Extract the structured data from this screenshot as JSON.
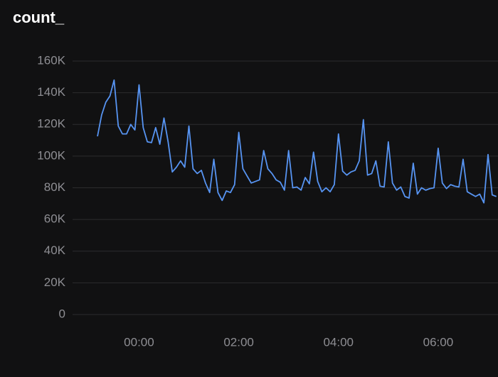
{
  "chart_data": {
    "type": "line",
    "title": "count_",
    "x": [
      -50,
      -45,
      -40,
      -35,
      -30,
      -25,
      -20,
      -15,
      -10,
      -5,
      0,
      5,
      10,
      15,
      20,
      25,
      30,
      35,
      40,
      45,
      50,
      55,
      60,
      65,
      70,
      75,
      80,
      85,
      90,
      95,
      100,
      105,
      110,
      115,
      120,
      125,
      130,
      135,
      140,
      145,
      150,
      155,
      160,
      165,
      170,
      175,
      180,
      185,
      190,
      195,
      200,
      205,
      210,
      215,
      220,
      225,
      230,
      235,
      240,
      245,
      250,
      255,
      260,
      265,
      270,
      275,
      280,
      285,
      290,
      295,
      300,
      305,
      310,
      315,
      320,
      325,
      330,
      335,
      340,
      345,
      350,
      355,
      360,
      365,
      370,
      375,
      380,
      385,
      390,
      395,
      400,
      405,
      410,
      415,
      420,
      425,
      430
    ],
    "series": [
      {
        "name": "count_",
        "color": "#5794f2",
        "values": [
          112500,
          126000,
          134000,
          138000,
          148000,
          119000,
          114000,
          114000,
          120000,
          116500,
          145000,
          118000,
          109000,
          108500,
          118000,
          107500,
          124000,
          109000,
          90000,
          93000,
          97000,
          93000,
          119000,
          92000,
          89000,
          91000,
          83000,
          77000,
          98000,
          77000,
          72000,
          78000,
          77000,
          82000,
          115000,
          92000,
          87500,
          83000,
          84000,
          85000,
          103500,
          92000,
          89000,
          85000,
          83500,
          78500,
          103500,
          80000,
          80500,
          78500,
          86500,
          82500,
          102500,
          84000,
          77500,
          80000,
          77500,
          82000,
          114000,
          90500,
          88000,
          90000,
          91000,
          97000,
          123000,
          88000,
          89000,
          97000,
          81000,
          80500,
          109000,
          83000,
          78500,
          80500,
          74500,
          73500,
          95500,
          76000,
          80000,
          78500,
          79500,
          80000,
          105000,
          83000,
          79500,
          82000,
          81000,
          80500,
          98000,
          77500,
          76000,
          74500,
          76000,
          70500,
          101000,
          75500,
          74500
        ]
      }
    ],
    "xlim": [
      -80,
      432
    ],
    "xticks": [
      {
        "value": 0,
        "label": "00:00"
      },
      {
        "value": 120,
        "label": "02:00"
      },
      {
        "value": 240,
        "label": "04:00"
      },
      {
        "value": 360,
        "label": "06:00"
      }
    ],
    "ylim": [
      0,
      160000
    ],
    "yticks": [
      0,
      {
        "value": 20000,
        "label": "20K"
      },
      {
        "value": 40000,
        "label": "40K"
      },
      {
        "value": 60000,
        "label": "60K"
      },
      {
        "value": 80000,
        "label": "80K"
      },
      {
        "value": 100000,
        "label": "100K"
      },
      {
        "value": 120000,
        "label": "120K"
      },
      {
        "value": 140000,
        "label": "140K"
      },
      {
        "value": 160000,
        "label": "160K"
      }
    ],
    "grid": true
  }
}
